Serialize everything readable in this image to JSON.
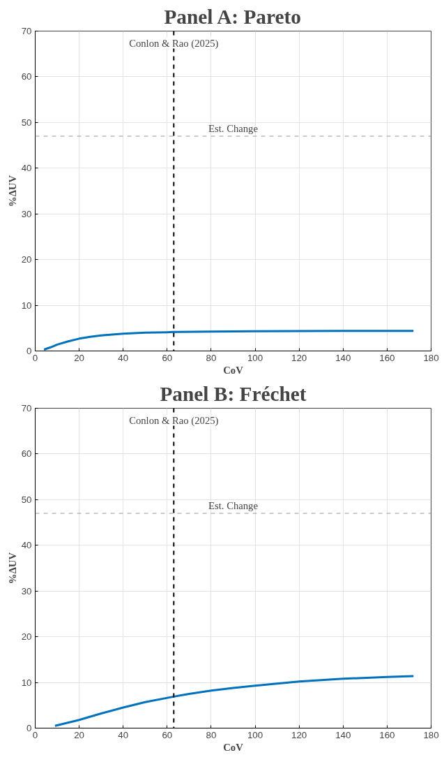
{
  "chart_data": [
    {
      "type": "line",
      "title": "Panel A: Pareto",
      "xlabel": "CoV",
      "ylabel": "%ΔUV",
      "xlim": [
        0,
        180
      ],
      "ylim": [
        0,
        70
      ],
      "xticks": [
        0,
        20,
        40,
        60,
        80,
        100,
        120,
        140,
        160,
        180
      ],
      "yticks": [
        0,
        10,
        20,
        30,
        40,
        50,
        60,
        70
      ],
      "grid": true,
      "x": [
        4,
        7,
        10,
        15,
        20,
        25,
        30,
        40,
        50,
        60,
        63,
        80,
        100,
        120,
        140,
        172
      ],
      "series": [
        {
          "color": "#0072bd",
          "values": [
            0.3,
            0.8,
            1.4,
            2.1,
            2.7,
            3.1,
            3.4,
            3.8,
            4.0,
            4.1,
            4.15,
            4.25,
            4.3,
            4.35,
            4.38,
            4.4
          ]
        }
      ],
      "ref_lines": [
        {
          "axis": "x",
          "value": 63,
          "label": "Conlon & Rao (2025)",
          "color": "#000000",
          "line_style": "dashed"
        },
        {
          "axis": "y",
          "value": 47,
          "label": "Est. Change",
          "color": "#999999",
          "line_style": "dashed"
        }
      ]
    },
    {
      "type": "line",
      "title": "Panel B: Fréchet",
      "xlabel": "CoV",
      "ylabel": "%ΔUV",
      "xlim": [
        0,
        180
      ],
      "ylim": [
        0,
        70
      ],
      "xticks": [
        0,
        20,
        40,
        60,
        80,
        100,
        120,
        140,
        160,
        180
      ],
      "yticks": [
        0,
        10,
        20,
        30,
        40,
        50,
        60,
        70
      ],
      "grid": true,
      "x": [
        9,
        20,
        30,
        40,
        50,
        63,
        70,
        80,
        90,
        100,
        120,
        140,
        160,
        172
      ],
      "series": [
        {
          "color": "#0072bd",
          "values": [
            0.5,
            1.8,
            3.2,
            4.5,
            5.7,
            6.9,
            7.5,
            8.2,
            8.8,
            9.3,
            10.2,
            10.8,
            11.2,
            11.4
          ]
        }
      ],
      "ref_lines": [
        {
          "axis": "x",
          "value": 63,
          "label": "Conlon & Rao (2025)",
          "color": "#000000",
          "line_style": "dashed"
        },
        {
          "axis": "y",
          "value": 47,
          "label": "Est. Change",
          "color": "#999999",
          "line_style": "dashed"
        }
      ]
    }
  ]
}
